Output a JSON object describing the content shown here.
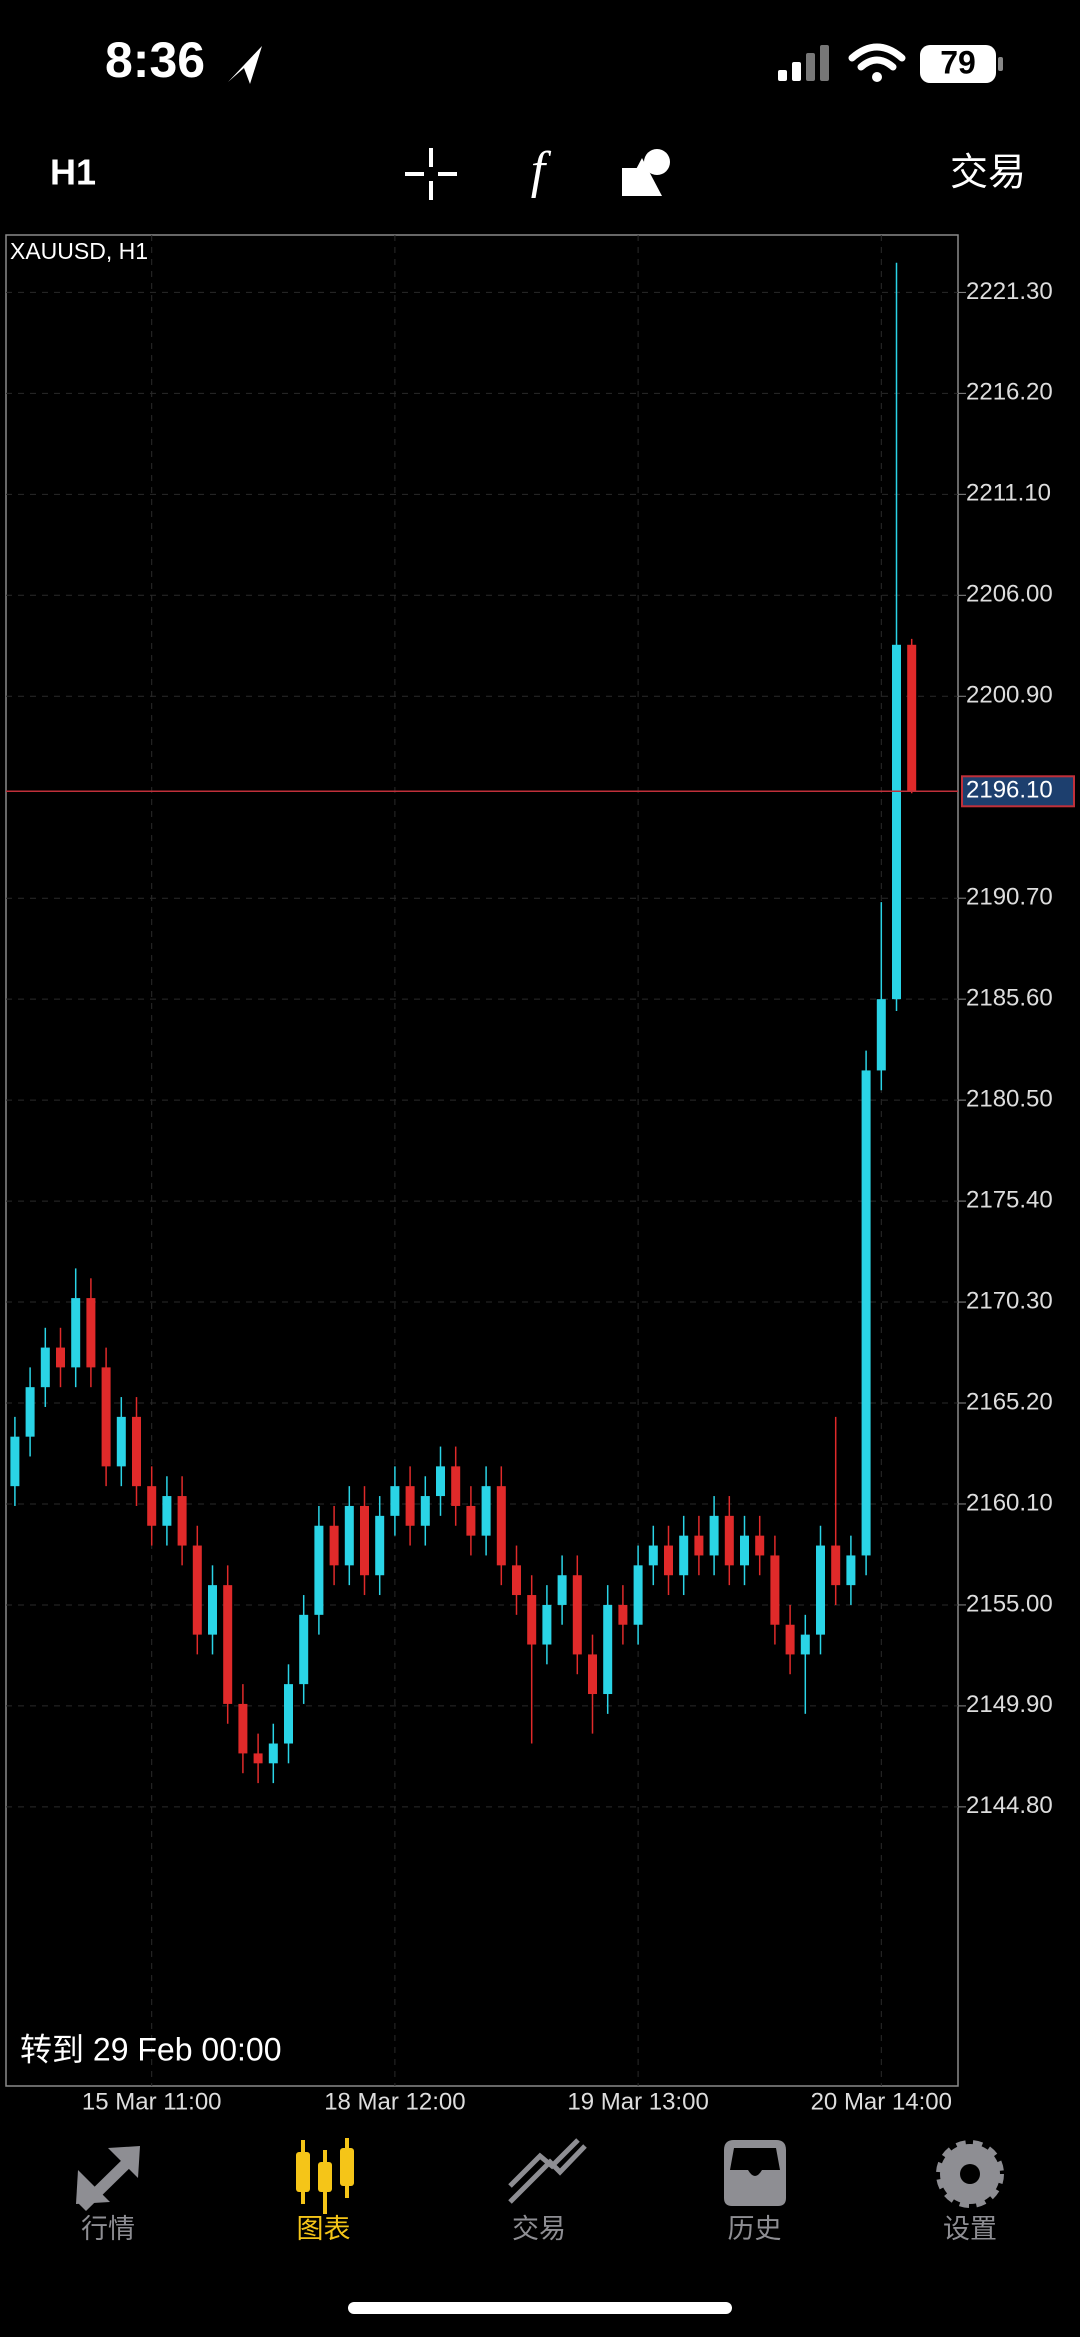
{
  "status_bar": {
    "time": "8:36",
    "battery": "79"
  },
  "toolbar": {
    "timeframe": "H1",
    "trade": "交易"
  },
  "chart_data": {
    "type": "candlestick",
    "symbol": "XAUUSD, H1",
    "categories": [
      null,
      null,
      null,
      null,
      null,
      null,
      null,
      null,
      null,
      "15 Mar 11:00",
      null,
      null,
      null,
      null,
      null,
      null,
      null,
      null,
      null,
      null,
      null,
      null,
      null,
      null,
      null,
      "18 Mar 12:00",
      null,
      null,
      null,
      null,
      null,
      null,
      null,
      null,
      null,
      null,
      null,
      null,
      null,
      null,
      null,
      "19 Mar 13:00",
      null,
      null,
      null,
      null,
      null,
      null,
      null,
      null,
      null,
      null,
      null,
      null,
      null,
      null,
      null,
      "20 Mar 14:00",
      null,
      null
    ],
    "open": [
      2161.0,
      2163.5,
      2166.0,
      2168.0,
      2167.0,
      2170.5,
      2167.0,
      2162.0,
      2164.5,
      2161.0,
      2159.0,
      2160.5,
      2158.0,
      2153.5,
      2156.0,
      2150.0,
      2147.5,
      2147.0,
      2148.0,
      2151.0,
      2154.5,
      2159.0,
      2157.0,
      2160.0,
      2156.5,
      2159.5,
      2161.0,
      2159.0,
      2160.5,
      2162.0,
      2160.0,
      2158.5,
      2161.0,
      2157.0,
      2155.5,
      2153.0,
      2155.0,
      2156.5,
      2152.5,
      2150.5,
      2155.0,
      2154.0,
      2157.0,
      2158.0,
      2156.5,
      2158.5,
      2157.5,
      2159.5,
      2157.0,
      2158.5,
      2157.5,
      2154.0,
      2152.5,
      2153.5,
      2158.0,
      2156.0,
      2157.5,
      2182.0,
      2185.6,
      2203.5
    ],
    "high": [
      2164.5,
      2167.0,
      2169.0,
      2169.0,
      2172.0,
      2171.5,
      2168.0,
      2165.5,
      2165.5,
      2162.0,
      2161.5,
      2161.5,
      2159.0,
      2157.0,
      2157.0,
      2151.0,
      2148.5,
      2149.0,
      2152.0,
      2155.5,
      2160.0,
      2160.0,
      2161.0,
      2161.0,
      2160.5,
      2162.0,
      2162.0,
      2161.5,
      2163.0,
      2163.0,
      2161.0,
      2162.0,
      2162.0,
      2158.0,
      2156.5,
      2156.0,
      2157.5,
      2157.5,
      2153.5,
      2156.0,
      2156.0,
      2158.0,
      2159.0,
      2159.0,
      2159.5,
      2159.5,
      2160.5,
      2160.5,
      2159.5,
      2159.5,
      2158.5,
      2155.0,
      2154.5,
      2159.0,
      2164.5,
      2158.5,
      2183.0,
      2190.5,
      2222.8,
      2203.8
    ],
    "low": [
      2160.0,
      2162.5,
      2165.0,
      2166.0,
      2166.0,
      2166.0,
      2161.0,
      2161.0,
      2160.0,
      2158.0,
      2158.0,
      2157.0,
      2152.5,
      2152.5,
      2149.0,
      2146.5,
      2146.0,
      2146.0,
      2147.0,
      2150.0,
      2153.5,
      2156.0,
      2156.0,
      2155.5,
      2155.5,
      2158.5,
      2158.0,
      2158.0,
      2159.5,
      2159.0,
      2157.5,
      2157.5,
      2156.0,
      2154.5,
      2148.0,
      2152.0,
      2154.0,
      2151.5,
      2148.5,
      2149.5,
      2153.0,
      2153.0,
      2156.0,
      2155.5,
      2155.5,
      2156.5,
      2156.5,
      2156.0,
      2156.0,
      2156.5,
      2153.0,
      2151.5,
      2149.5,
      2152.5,
      2155.0,
      2155.0,
      2156.5,
      2181.0,
      2185.0,
      2196.0
    ],
    "close": [
      2163.5,
      2166.0,
      2168.0,
      2167.0,
      2170.5,
      2167.0,
      2162.0,
      2164.5,
      2161.0,
      2159.0,
      2160.5,
      2158.0,
      2153.5,
      2156.0,
      2150.0,
      2147.5,
      2147.0,
      2148.0,
      2151.0,
      2154.5,
      2159.0,
      2157.0,
      2160.0,
      2156.5,
      2159.5,
      2161.0,
      2159.0,
      2160.5,
      2162.0,
      2160.0,
      2158.5,
      2161.0,
      2157.0,
      2155.5,
      2153.0,
      2155.0,
      2156.5,
      2152.5,
      2150.5,
      2155.0,
      2154.0,
      2157.0,
      2158.0,
      2156.5,
      2158.5,
      2157.5,
      2159.5,
      2157.0,
      2158.5,
      2157.5,
      2154.0,
      2152.5,
      2153.5,
      2158.0,
      2156.0,
      2157.5,
      2182.0,
      2185.6,
      2203.5,
      2196.1
    ],
    "up_color": "#2ad4e6",
    "down_color": "#e02a2a",
    "ylim": [
      2130.7,
      2224.2
    ],
    "yticks": [
      {
        "value": 2221.3,
        "label": "2221.30"
      },
      {
        "value": 2216.2,
        "label": "2216.20"
      },
      {
        "value": 2211.1,
        "label": "2211.10"
      },
      {
        "value": 2206,
        "label": "2206.00"
      },
      {
        "value": 2200.9,
        "label": "2200.90"
      },
      {
        "value": 2190.7,
        "label": "2190.70"
      },
      {
        "value": 2185.6,
        "label": "2185.60"
      },
      {
        "value": 2180.5,
        "label": "2180.50"
      },
      {
        "value": 2175.4,
        "label": "2175.40"
      },
      {
        "value": 2170.3,
        "label": "2170.30"
      },
      {
        "value": 2165.2,
        "label": "2165.20"
      },
      {
        "value": 2160.1,
        "label": "2160.10"
      },
      {
        "value": 2155,
        "label": "2155.00"
      },
      {
        "value": 2149.9,
        "label": "2149.90"
      },
      {
        "value": 2144.8,
        "label": "2144.80"
      }
    ],
    "current_price": {
      "value": 2196.1,
      "label": "2196.10"
    },
    "grid": true,
    "goto": "转到 29 Feb 00:00"
  },
  "tabs": [
    "行情",
    "图表",
    "交易",
    "历史",
    "设置"
  ],
  "active_tab": 1
}
